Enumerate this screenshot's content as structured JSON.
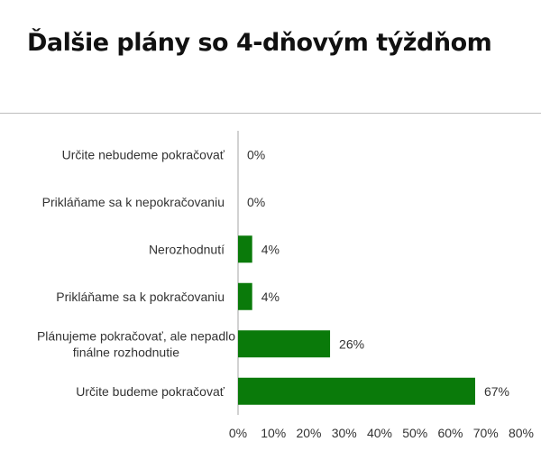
{
  "title": "Ďalšie plány so 4-dňovým týždňom",
  "chart_data": {
    "type": "bar",
    "orientation": "horizontal",
    "categories": [
      [
        "Určite nebudeme pokračovať"
      ],
      [
        "Prikláňame sa k nepokračovaniu"
      ],
      [
        "Nerozhodnutí"
      ],
      [
        "Prikláňame sa k pokračovaniu"
      ],
      [
        "Plánujeme pokračovať, ale nepadlo",
        "finálne rozhodnutie"
      ],
      [
        "Určite budeme pokračovať"
      ]
    ],
    "values": [
      0,
      0,
      4,
      4,
      26,
      67
    ],
    "value_labels": [
      "0%",
      "0%",
      "4%",
      "4%",
      "26%",
      "67%"
    ],
    "xlim": [
      0,
      80
    ],
    "x_ticks": [
      "0%",
      "10%",
      "20%",
      "30%",
      "40%",
      "50%",
      "60%",
      "70%",
      "80%"
    ],
    "bar_color": "#0a7a0a",
    "grid": false
  }
}
